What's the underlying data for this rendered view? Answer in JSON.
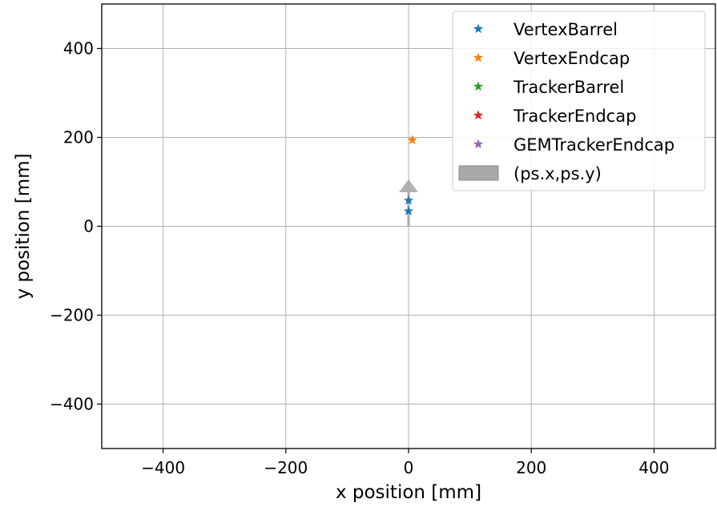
{
  "chart_data": {
    "type": "scatter",
    "title": "",
    "xlabel": "x position [mm]",
    "ylabel": "y position [mm]",
    "xlim": [
      -500,
      500
    ],
    "ylim": [
      -500,
      500
    ],
    "xticks": [
      -400,
      -200,
      0,
      200,
      400
    ],
    "yticks": [
      -400,
      -200,
      0,
      200,
      400
    ],
    "xtick_labels": [
      "−400",
      "−200",
      "0",
      "200",
      "400"
    ],
    "ytick_labels": [
      "−400",
      "−200",
      "0",
      "200",
      "400"
    ],
    "grid": true,
    "legend_position": "upper right",
    "series": [
      {
        "name": "VertexBarrel",
        "marker": "star",
        "color": "#1f77b4",
        "points": [
          [
            0,
            58
          ],
          [
            0,
            34
          ]
        ]
      },
      {
        "name": "VertexEndcap",
        "marker": "star",
        "color": "#ff7f0e",
        "points": [
          [
            6,
            194
          ]
        ]
      },
      {
        "name": "TrackerBarrel",
        "marker": "star",
        "color": "#2ca02c",
        "points": []
      },
      {
        "name": "TrackerEndcap",
        "marker": "star",
        "color": "#d62728",
        "points": []
      },
      {
        "name": "GEMTrackerEndcap",
        "marker": "star",
        "color": "#9467bd",
        "points": []
      }
    ],
    "arrow": {
      "name": "(ps.x,ps.y)",
      "color": "#a9a9a9",
      "start": [
        0,
        0
      ],
      "end": [
        0,
        100
      ]
    }
  }
}
